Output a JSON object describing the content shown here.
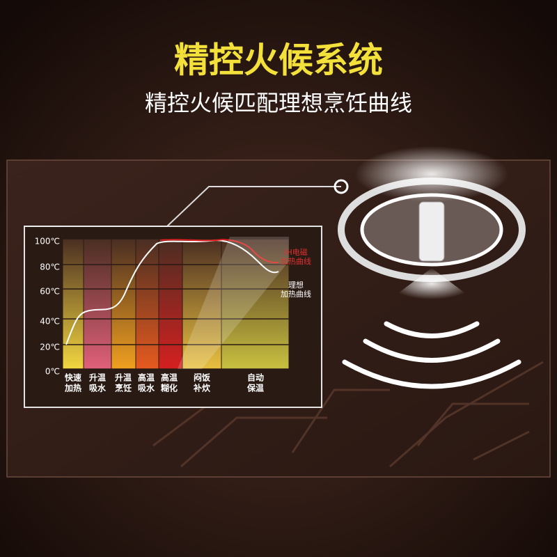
{
  "header": {
    "title": "精控火候系统",
    "subtitle": "精控火候匹配理想烹饪曲线"
  },
  "chart": {
    "yticks": [
      "100℃",
      "80℃",
      "60℃",
      "40℃",
      "20℃",
      "0℃"
    ],
    "stages": [
      [
        "快速",
        "加热"
      ],
      [
        "升温",
        "吸水"
      ],
      [
        "升温",
        "烹饪"
      ],
      [
        "高温",
        "吸水"
      ],
      [
        "高温",
        "糊化"
      ],
      [
        "闷饭",
        "补炊"
      ],
      [
        "自动",
        "保温"
      ]
    ],
    "curves": [
      [
        "IH电磁",
        "加热曲线"
      ],
      [
        "理想",
        "加热曲线"
      ]
    ]
  }
}
